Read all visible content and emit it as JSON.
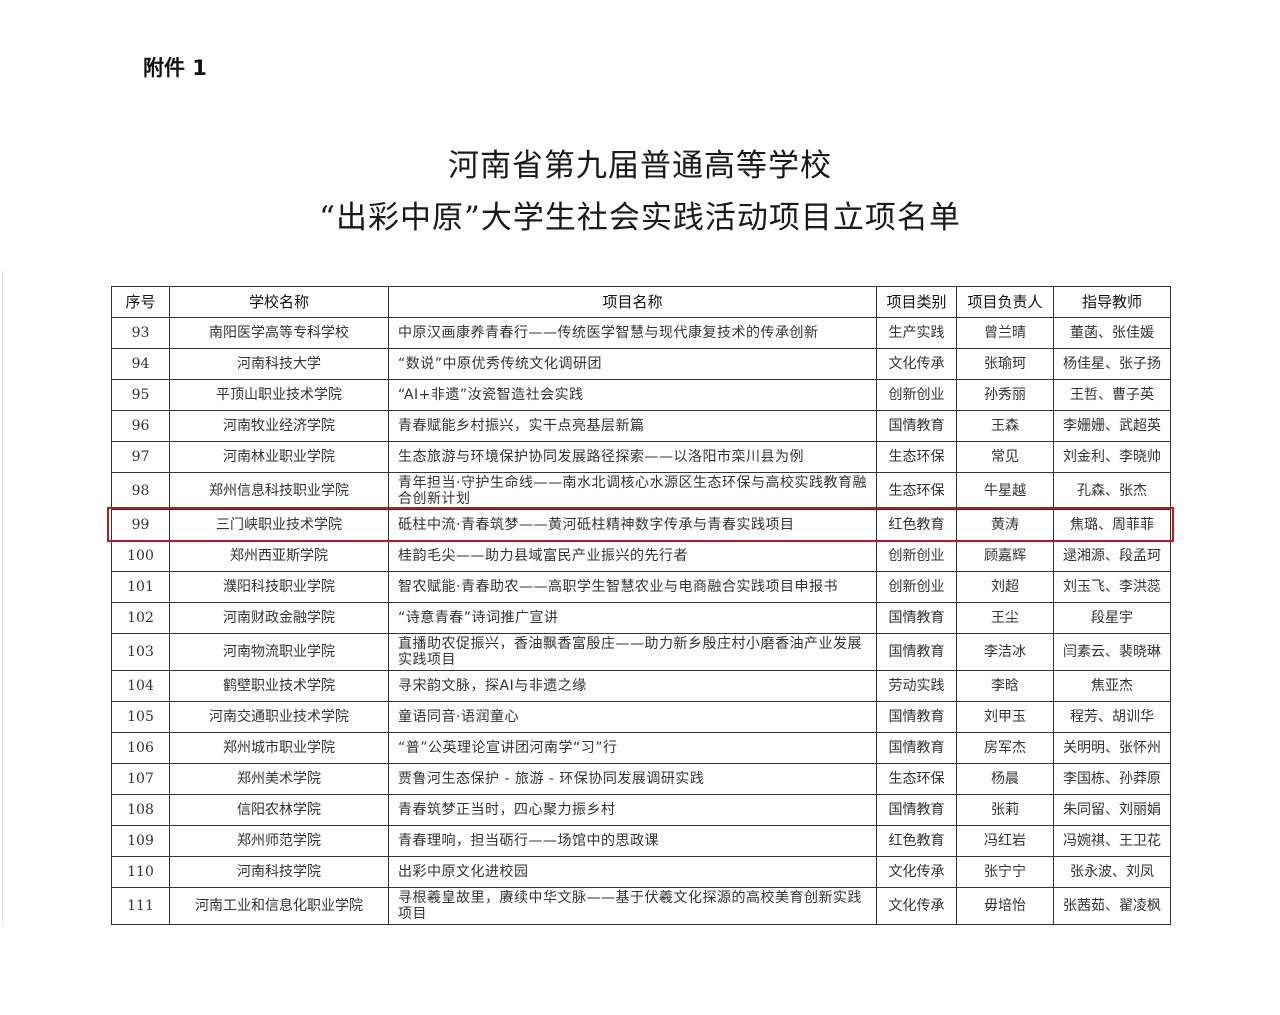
{
  "attachment_label": "附件 1",
  "title_line1": "河南省第九届普通高等学校",
  "title_line2": "“出彩中原”大学生社会实践活动项目立项名单",
  "highlight_color": "#c8161d",
  "highlighted_row": "99",
  "table": {
    "headers": [
      "序号",
      "学校名称",
      "项目名称",
      "项目类别",
      "项目负责人",
      "指导教师"
    ],
    "rows": [
      {
        "no": "93",
        "school": "南阳医学高等专科学校",
        "project": "中原汉画康养青春行——传统医学智慧与现代康复技术的传承创新",
        "category": "生产实践",
        "leader": "曾兰晴",
        "advisors": "董菡、张佳媛"
      },
      {
        "no": "94",
        "school": "河南科技大学",
        "project": "“数说”中原优秀传统文化调研团",
        "category": "文化传承",
        "leader": "张瑜珂",
        "advisors": "杨佳星、张子扬"
      },
      {
        "no": "95",
        "school": "平顶山职业技术学院",
        "project": "“AI+非遗”汝瓷智造社会实践",
        "category": "创新创业",
        "leader": "孙秀丽",
        "advisors": "王哲、曹子英"
      },
      {
        "no": "96",
        "school": "河南牧业经济学院",
        "project": "青春赋能乡村振兴，实干点亮基层新篇",
        "category": "国情教育",
        "leader": "王森",
        "advisors": "李姗姗、武超英"
      },
      {
        "no": "97",
        "school": "河南林业职业学院",
        "project": "生态旅游与环境保护协同发展路径探索——以洛阳市栾川县为例",
        "category": "生态环保",
        "leader": "常见",
        "advisors": "刘金利、李晓帅"
      },
      {
        "no": "98",
        "school": "郑州信息科技职业学院",
        "project": "青年担当·守护生命线——南水北调核心水源区生态环保与高校实践教育融合创新计划",
        "category": "生态环保",
        "leader": "牛星越",
        "advisors": "孔森、张杰"
      },
      {
        "no": "99",
        "school": "三门峡职业技术学院",
        "project": "砥柱中流·青春筑梦——黄河砥柱精神数字传承与青春实践项目",
        "category": "红色教育",
        "leader": "黄涛",
        "advisors": "焦璐、周菲菲"
      },
      {
        "no": "100",
        "school": "郑州西亚斯学院",
        "project": "桂韵毛尖——助力县域富民产业振兴的先行者",
        "category": "创新创业",
        "leader": "顾嘉辉",
        "advisors": "逯湘源、段孟珂"
      },
      {
        "no": "101",
        "school": "濮阳科技职业学院",
        "project": "智农赋能·青春助农——高职学生智慧农业与电商融合实践项目申报书",
        "category": "创新创业",
        "leader": "刘超",
        "advisors": "刘玉飞、李洪蕊"
      },
      {
        "no": "102",
        "school": "河南财政金融学院",
        "project": "“诗意青春”诗词推广宣讲",
        "category": "国情教育",
        "leader": "王尘",
        "advisors": "段星宇"
      },
      {
        "no": "103",
        "school": "河南物流职业学院",
        "project": "直播助农促振兴，香油飘香富殷庄——助力新乡殷庄村小磨香油产业发展实践项目",
        "category": "国情教育",
        "leader": "李洁冰",
        "advisors": "闫素云、裴晓琳"
      },
      {
        "no": "104",
        "school": "鹤壁职业技术学院",
        "project": "寻宋韵文脉，探AI与非遗之缘",
        "category": "劳动实践",
        "leader": "李晗",
        "advisors": "焦亚杰"
      },
      {
        "no": "105",
        "school": "河南交通职业技术学院",
        "project": "童语同音·语润童心",
        "category": "国情教育",
        "leader": "刘甲玉",
        "advisors": "程芳、胡训华"
      },
      {
        "no": "106",
        "school": "郑州城市职业学院",
        "project": "“普”公英理论宣讲团河南学“习”行",
        "category": "国情教育",
        "leader": "房军杰",
        "advisors": "关明明、张怀州"
      },
      {
        "no": "107",
        "school": "郑州美术学院",
        "project": "贾鲁河生态保护 - 旅游 - 环保协同发展调研实践",
        "category": "生态环保",
        "leader": "杨晨",
        "advisors": "李国栋、孙莽原"
      },
      {
        "no": "108",
        "school": "信阳农林学院",
        "project": "青春筑梦正当时，四心聚力振乡村",
        "category": "国情教育",
        "leader": "张莉",
        "advisors": "朱同留、刘丽娟"
      },
      {
        "no": "109",
        "school": "郑州师范学院",
        "project": "青春理响，担当砺行——场馆中的思政课",
        "category": "红色教育",
        "leader": "冯红岩",
        "advisors": "冯婉祺、王卫花"
      },
      {
        "no": "110",
        "school": "河南科技学院",
        "project": "出彩中原文化进校园",
        "category": "文化传承",
        "leader": "张宁宁",
        "advisors": "张永波、刘凤"
      },
      {
        "no": "111",
        "school": "河南工业和信息化职业学院",
        "project": "寻根羲皇故里，赓续中华文脉——基于伏羲文化探源的高校美育创新实践项目",
        "category": "文化传承",
        "leader": "毋培怡",
        "advisors": "张茜茹、翟凌枫"
      }
    ]
  }
}
